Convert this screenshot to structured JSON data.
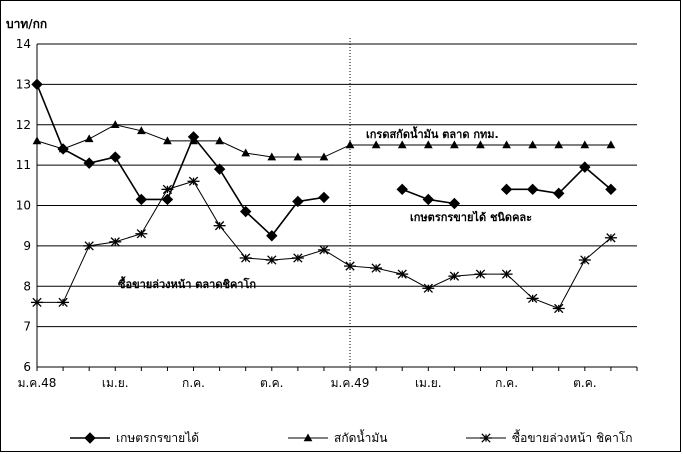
{
  "chart_data": {
    "type": "line",
    "ylabel": "บาท/กก",
    "ylim": [
      6,
      14
    ],
    "yticks": [
      "6",
      "7",
      "8",
      "9",
      "10",
      "11",
      "12",
      "13",
      "14"
    ],
    "x_tick_labels": [
      "ม.ค.48",
      "เม.ย.",
      "ก.ค.",
      "ต.ค.",
      "ม.ค.49",
      "เม.ย.",
      "ก.ค.",
      "ต.ค."
    ],
    "x_tick_months": [
      1,
      4,
      7,
      10,
      13,
      16,
      19,
      22
    ],
    "x_range_months": [
      1,
      24
    ],
    "grid": "horizontal",
    "legend_position": "bottom",
    "series": [
      {
        "name": "เกษตรกรขายได้",
        "marker": "diamond",
        "values": [
          13.0,
          11.4,
          11.05,
          11.2,
          10.15,
          10.15,
          11.7,
          10.9,
          9.85,
          9.25,
          10.1,
          10.2,
          null,
          null,
          10.4,
          10.15,
          10.05,
          null,
          10.4,
          10.4,
          10.3,
          10.95,
          10.4
        ]
      },
      {
        "name": "สกัดน้ำมัน",
        "marker": "triangle",
        "values": [
          11.6,
          11.4,
          11.65,
          12.0,
          11.85,
          11.6,
          11.6,
          11.6,
          11.3,
          11.2,
          11.2,
          11.2,
          11.5,
          11.5,
          11.5,
          11.5,
          11.5,
          11.5,
          11.5,
          11.5,
          11.5,
          11.5,
          11.5
        ]
      },
      {
        "name": "ซื้อขายล่วงหน้า ชิคาโก",
        "marker": "asterisk",
        "values": [
          7.6,
          7.6,
          9.0,
          9.1,
          9.3,
          10.4,
          10.6,
          9.5,
          8.7,
          8.65,
          8.7,
          8.9,
          8.5,
          8.45,
          8.3,
          7.95,
          8.25,
          8.3,
          8.3,
          7.7,
          7.45,
          8.65,
          9.2
        ]
      }
    ],
    "annotations": [
      {
        "text": "เกรดสกัดน้ำมัน ตลาด กทม."
      },
      {
        "text": "เกษตรกรขายได้ ชนิดคละ"
      },
      {
        "text": "ซื้อขายล่วงหน้า ตลาดชิคาโก"
      }
    ],
    "divider_at_label": "ม.ค.49"
  }
}
